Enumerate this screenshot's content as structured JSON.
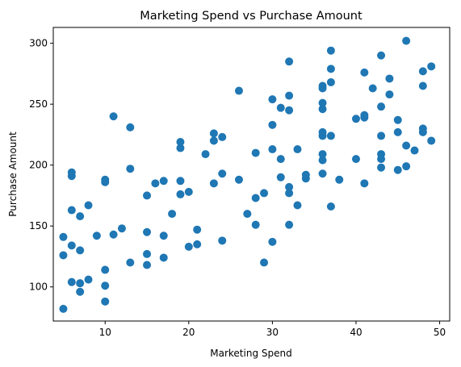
{
  "chart_data": {
    "type": "scatter",
    "title": "Marketing Spend vs Purchase Amount",
    "xlabel": "Marketing Spend",
    "ylabel": "Purchase Amount",
    "xlim": [
      3.8,
      51.2
    ],
    "ylim": [
      72,
      313
    ],
    "xticks": [
      10,
      20,
      30,
      40,
      50
    ],
    "yticks": [
      100,
      150,
      200,
      250,
      300
    ],
    "grid": false,
    "marker_color": "#1f77b4",
    "points": [
      [
        5,
        82
      ],
      [
        5,
        126
      ],
      [
        5,
        141
      ],
      [
        6,
        104
      ],
      [
        6,
        134
      ],
      [
        6,
        163
      ],
      [
        6,
        191
      ],
      [
        6,
        194
      ],
      [
        7,
        96
      ],
      [
        7,
        103
      ],
      [
        7,
        130
      ],
      [
        7,
        158
      ],
      [
        8,
        106
      ],
      [
        8,
        167
      ],
      [
        9,
        142
      ],
      [
        10,
        88
      ],
      [
        10,
        101
      ],
      [
        10,
        114
      ],
      [
        10,
        186
      ],
      [
        10,
        188
      ],
      [
        11,
        143
      ],
      [
        11,
        240
      ],
      [
        12,
        148
      ],
      [
        13,
        120
      ],
      [
        13,
        197
      ],
      [
        13,
        231
      ],
      [
        15,
        118
      ],
      [
        15,
        127
      ],
      [
        15,
        145
      ],
      [
        15,
        175
      ],
      [
        16,
        185
      ],
      [
        17,
        124
      ],
      [
        17,
        142
      ],
      [
        17,
        187
      ],
      [
        18,
        160
      ],
      [
        19,
        176
      ],
      [
        19,
        187
      ],
      [
        19,
        214
      ],
      [
        19,
        219
      ],
      [
        20,
        133
      ],
      [
        20,
        178
      ],
      [
        21,
        135
      ],
      [
        21,
        147
      ],
      [
        22,
        209
      ],
      [
        23,
        185
      ],
      [
        23,
        220
      ],
      [
        23,
        226
      ],
      [
        24,
        138
      ],
      [
        24,
        193
      ],
      [
        24,
        223
      ],
      [
        26,
        188
      ],
      [
        26,
        261
      ],
      [
        27,
        160
      ],
      [
        28,
        151
      ],
      [
        28,
        173
      ],
      [
        28,
        210
      ],
      [
        29,
        120
      ],
      [
        29,
        177
      ],
      [
        30,
        137
      ],
      [
        30,
        213
      ],
      [
        30,
        233
      ],
      [
        30,
        254
      ],
      [
        31,
        190
      ],
      [
        31,
        205
      ],
      [
        31,
        247
      ],
      [
        32,
        151
      ],
      [
        32,
        177
      ],
      [
        32,
        182
      ],
      [
        32,
        245
      ],
      [
        32,
        257
      ],
      [
        32,
        285
      ],
      [
        33,
        167
      ],
      [
        33,
        213
      ],
      [
        34,
        189
      ],
      [
        34,
        192
      ],
      [
        36,
        193
      ],
      [
        36,
        204
      ],
      [
        36,
        209
      ],
      [
        36,
        224
      ],
      [
        36,
        227
      ],
      [
        36,
        246
      ],
      [
        36,
        251
      ],
      [
        36,
        263
      ],
      [
        36,
        265
      ],
      [
        37,
        166
      ],
      [
        37,
        224
      ],
      [
        37,
        268
      ],
      [
        37,
        279
      ],
      [
        37,
        294
      ],
      [
        38,
        188
      ],
      [
        40,
        205
      ],
      [
        40,
        238
      ],
      [
        41,
        185
      ],
      [
        41,
        239
      ],
      [
        41,
        241
      ],
      [
        41,
        276
      ],
      [
        42,
        263
      ],
      [
        43,
        198
      ],
      [
        43,
        205
      ],
      [
        43,
        209
      ],
      [
        43,
        224
      ],
      [
        43,
        248
      ],
      [
        43,
        290
      ],
      [
        44,
        258
      ],
      [
        44,
        271
      ],
      [
        45,
        196
      ],
      [
        45,
        227
      ],
      [
        45,
        237
      ],
      [
        46,
        199
      ],
      [
        46,
        216
      ],
      [
        46,
        302
      ],
      [
        47,
        212
      ],
      [
        48,
        227
      ],
      [
        48,
        230
      ],
      [
        48,
        265
      ],
      [
        48,
        277
      ],
      [
        49,
        220
      ],
      [
        49,
        281
      ]
    ]
  }
}
